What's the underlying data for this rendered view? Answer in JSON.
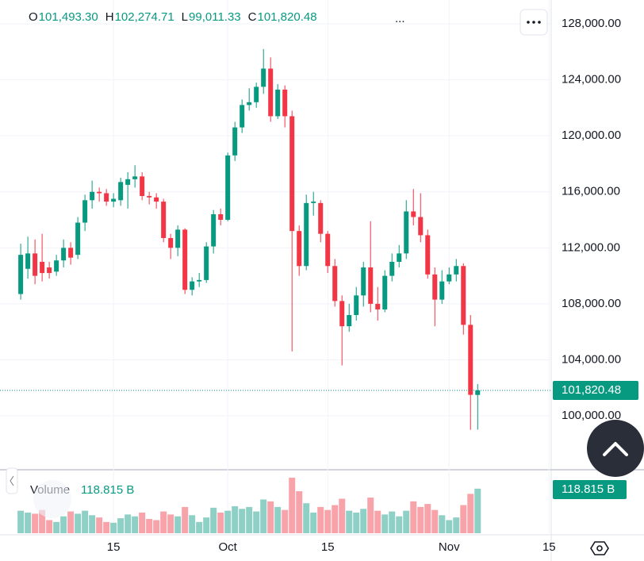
{
  "chart_data": [
    {
      "type": "candlestick",
      "header": [
        {
          "key": "O",
          "label": "101,493.30"
        },
        {
          "key": "H",
          "label": "102,274.71"
        },
        {
          "key": "L",
          "label": "99,011.33"
        },
        {
          "key": "C",
          "label": "101,820.48"
        }
      ],
      "open": [
        108700,
        110500,
        111600,
        111000,
        110600,
        110300,
        111100,
        112000,
        111500,
        113800,
        115400,
        116000,
        115900,
        115300,
        115400,
        116500,
        116900,
        117100,
        115700,
        115600,
        115300,
        112700,
        112000,
        113300,
        109000,
        109600,
        109700,
        112100,
        114400,
        114000,
        118600,
        120600,
        122200,
        122400,
        123500,
        124800,
        121400,
        123300,
        121400,
        113200,
        110700,
        115200,
        115200,
        113000,
        110700,
        108200,
        106400,
        107200,
        108600,
        110600,
        108000,
        107600,
        110000,
        111000,
        111600,
        114600,
        114200,
        112900,
        110100,
        108300,
        109600,
        110100,
        110700,
        106500,
        101493.3
      ],
      "high": [
        112300,
        112800,
        112600,
        113000,
        111000,
        111500,
        112600,
        112400,
        114200,
        115800,
        116800,
        116300,
        116200,
        115900,
        117000,
        117400,
        117900,
        117400,
        116000,
        115900,
        115500,
        113000,
        113600,
        113400,
        109900,
        110200,
        112400,
        114700,
        114800,
        118800,
        121000,
        122600,
        123400,
        123800,
        126200,
        125600,
        123700,
        123600,
        121800,
        113600,
        115800,
        116000,
        115400,
        113200,
        111200,
        108600,
        108000,
        109200,
        111000,
        113900,
        109200,
        110400,
        111600,
        112200,
        115400,
        116200,
        115900,
        113300,
        110600,
        110400,
        110600,
        111200,
        110900,
        107200,
        102274.71
      ],
      "low": [
        108300,
        109800,
        109400,
        109600,
        109800,
        110000,
        110600,
        110800,
        111200,
        113200,
        114800,
        115300,
        115000,
        114900,
        115000,
        114800,
        116300,
        115400,
        115100,
        114800,
        112400,
        111200,
        111400,
        108700,
        108600,
        109200,
        109500,
        111600,
        113600,
        113900,
        118200,
        120200,
        121800,
        122000,
        123000,
        121000,
        121200,
        120600,
        104600,
        110000,
        110400,
        114300,
        112400,
        110200,
        107800,
        103600,
        106000,
        106800,
        107800,
        107400,
        106800,
        107400,
        109600,
        110600,
        111200,
        113600,
        112400,
        109800,
        106400,
        108000,
        109400,
        109600,
        105800,
        99000,
        99011.33
      ],
      "close": [
        111500,
        111600,
        110000,
        110200,
        110200,
        111100,
        112000,
        111300,
        113800,
        115400,
        116000,
        115900,
        115300,
        115500,
        116700,
        116900,
        117100,
        115700,
        115600,
        115300,
        112700,
        112000,
        113300,
        109000,
        109600,
        109700,
        112100,
        114400,
        114000,
        118600,
        120600,
        122200,
        122400,
        123500,
        124800,
        121400,
        123300,
        121400,
        113200,
        110700,
        115200,
        115300,
        113000,
        110700,
        108200,
        106400,
        107200,
        108600,
        110600,
        108000,
        107600,
        110000,
        111000,
        111600,
        114600,
        114200,
        112900,
        110100,
        108300,
        109600,
        110100,
        110700,
        106500,
        101500,
        101820.48
      ],
      "ylim": [
        96150,
        129700
      ],
      "yticks": [
        {
          "value": 100000,
          "label": "100,000.00"
        },
        {
          "value": 104000,
          "label": "104,000.00"
        },
        {
          "value": 108000,
          "label": "108,000.00"
        },
        {
          "value": 112000,
          "label": "112,000.00"
        },
        {
          "value": 116000,
          "label": "116,000.00"
        },
        {
          "value": 120000,
          "label": "120,000.00"
        },
        {
          "value": 124000,
          "label": "124,000.00"
        },
        {
          "value": 128000,
          "label": "128,000.00"
        }
      ],
      "xlim": [
        -2.9,
        74.3
      ],
      "xticks": [
        {
          "value": 13,
          "label": "15"
        },
        {
          "value": 29,
          "label": "Oct"
        },
        {
          "value": 43,
          "label": "15"
        },
        {
          "value": 60,
          "label": "Nov"
        },
        {
          "value": 74,
          "label": "15"
        }
      ],
      "last_price_label": "101,820.48",
      "up_color": "#089981",
      "down_color": "#f23645",
      "grid": true
    },
    {
      "type": "bar",
      "title": "Volume",
      "values": [
        60,
        55,
        52,
        62,
        35,
        30,
        45,
        58,
        52,
        60,
        48,
        42,
        30,
        28,
        40,
        50,
        45,
        55,
        38,
        35,
        58,
        50,
        45,
        70,
        48,
        30,
        42,
        68,
        55,
        60,
        72,
        65,
        70,
        58,
        90,
        85,
        70,
        62,
        148,
        112,
        80,
        55,
        70,
        62,
        75,
        92,
        60,
        55,
        65,
        95,
        60,
        50,
        58,
        45,
        60,
        85,
        70,
        78,
        62,
        48,
        35,
        42,
        75,
        105,
        118.815
      ],
      "ylim": [
        0,
        165
      ],
      "last_label": "118.815 B",
      "up_color": "#8ed0c6",
      "down_color": "#f8a3aa"
    }
  ]
}
